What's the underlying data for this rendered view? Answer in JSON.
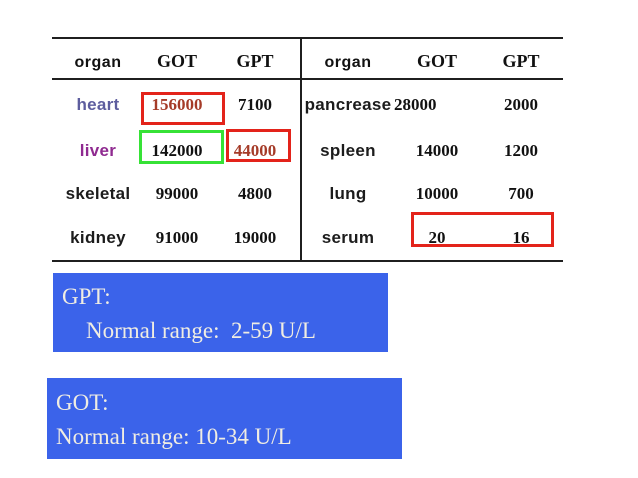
{
  "table": {
    "left": {
      "headers": {
        "organ": "organ",
        "got": "GOT",
        "gpt": "GPT"
      },
      "rows": [
        {
          "organ": "heart",
          "got": "156000",
          "gpt": "7100"
        },
        {
          "organ": "liver",
          "got": "142000",
          "gpt": "44000"
        },
        {
          "organ": "skeletal",
          "got": "99000",
          "gpt": "4800"
        },
        {
          "organ": "kidney",
          "got": "91000",
          "gpt": "19000"
        }
      ]
    },
    "right": {
      "headers": {
        "organ": "organ",
        "got": "GOT",
        "gpt": "GPT"
      },
      "rows": [
        {
          "organ": "pancrease",
          "got": "28000",
          "gpt": "2000"
        },
        {
          "organ": "spleen",
          "got": "14000",
          "gpt": "1200"
        },
        {
          "organ": "lung",
          "got": "10000",
          "gpt": "700"
        },
        {
          "organ": "serum",
          "got": "20",
          "gpt": "16"
        }
      ]
    },
    "highlights": [
      "heart GOT value boxed red",
      "liver GOT value boxed green",
      "liver GPT value boxed red",
      "serum GOT and GPT values boxed red"
    ]
  },
  "panels": {
    "gpt": {
      "title": "GPT:",
      "range": "Normal range:  2-59 U/L"
    },
    "got": {
      "title": "GOT:",
      "range": "Normal range: 10-34 U/L"
    }
  },
  "colors": {
    "panel_blue": "#3b63ea",
    "panel_text": "#f0ede2",
    "highlight_red": "#e3231a",
    "highlight_green": "#36e236",
    "emphasized_number": "#a53b28",
    "heart_label": "#5d5d9e",
    "liver_label": "#8f2a90",
    "table_line": "#1f1f1f"
  }
}
